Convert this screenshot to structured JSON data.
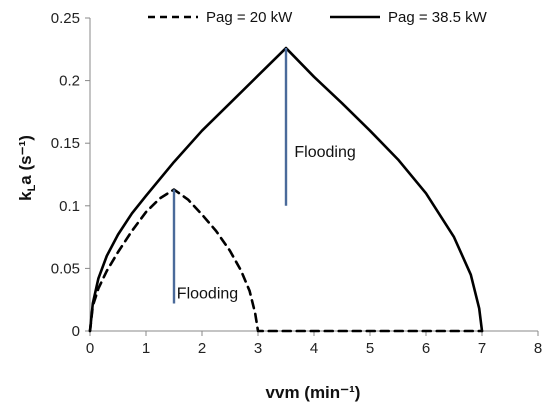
{
  "chart_data": {
    "type": "line",
    "xlabel": "vvm (min⁻¹)",
    "ylabel_main": "k",
    "ylabel_sub": "L",
    "ylabel_rest": "a (s⁻¹)",
    "xlim": [
      0,
      8
    ],
    "ylim": [
      0,
      0.25
    ],
    "x_ticks": [
      0,
      1,
      2,
      3,
      4,
      5,
      6,
      7,
      8
    ],
    "x_tick_labels": [
      "0",
      "1",
      "2",
      "3",
      "4",
      "5",
      "6",
      "7",
      "8"
    ],
    "y_ticks": [
      0,
      0.05,
      0.1,
      0.15,
      0.2,
      0.25
    ],
    "y_tick_labels": [
      "0",
      "0.05",
      "0.1",
      "0.15",
      "0.2",
      "0.25"
    ],
    "grid": false,
    "legend_position": "top",
    "series": [
      {
        "name": "Pag = 20 kW",
        "style": "dashed",
        "color": "#000000",
        "x": [
          0,
          0.05,
          0.15,
          0.3,
          0.5,
          0.75,
          1.0,
          1.25,
          1.5,
          1.75,
          2.0,
          2.25,
          2.5,
          2.7,
          2.85,
          2.95,
          3.0,
          3.05,
          3.5,
          4.0,
          5.0,
          6.0,
          7.0
        ],
        "y": [
          0,
          0.02,
          0.034,
          0.048,
          0.063,
          0.08,
          0.095,
          0.106,
          0.113,
          0.105,
          0.093,
          0.08,
          0.064,
          0.048,
          0.032,
          0.014,
          0.0,
          0.0,
          0.0,
          0.0,
          0.0,
          0.0,
          0.0
        ]
      },
      {
        "name": "Pag = 38.5 kW",
        "style": "solid",
        "color": "#000000",
        "x": [
          0,
          0.05,
          0.15,
          0.3,
          0.5,
          0.75,
          1.0,
          1.5,
          2.0,
          2.5,
          3.0,
          3.5,
          4.0,
          4.5,
          5.0,
          5.5,
          6.0,
          6.5,
          6.8,
          6.95,
          7.0
        ],
        "y": [
          0,
          0.022,
          0.042,
          0.06,
          0.077,
          0.094,
          0.108,
          0.135,
          0.16,
          0.182,
          0.204,
          0.226,
          0.203,
          0.182,
          0.16,
          0.137,
          0.11,
          0.075,
          0.045,
          0.018,
          0.0
        ]
      }
    ],
    "annotations": [
      {
        "text": "Flooding",
        "line_x": 1.5,
        "line_y_from": 0.022,
        "line_y_to": 0.113,
        "label_x": 1.55,
        "label_y": 0.026,
        "color": "#4a6a9a"
      },
      {
        "text": "Flooding",
        "line_x": 3.5,
        "line_y_from": 0.1,
        "line_y_to": 0.226,
        "label_x": 3.65,
        "label_y": 0.139,
        "color": "#4a6a9a"
      }
    ]
  }
}
